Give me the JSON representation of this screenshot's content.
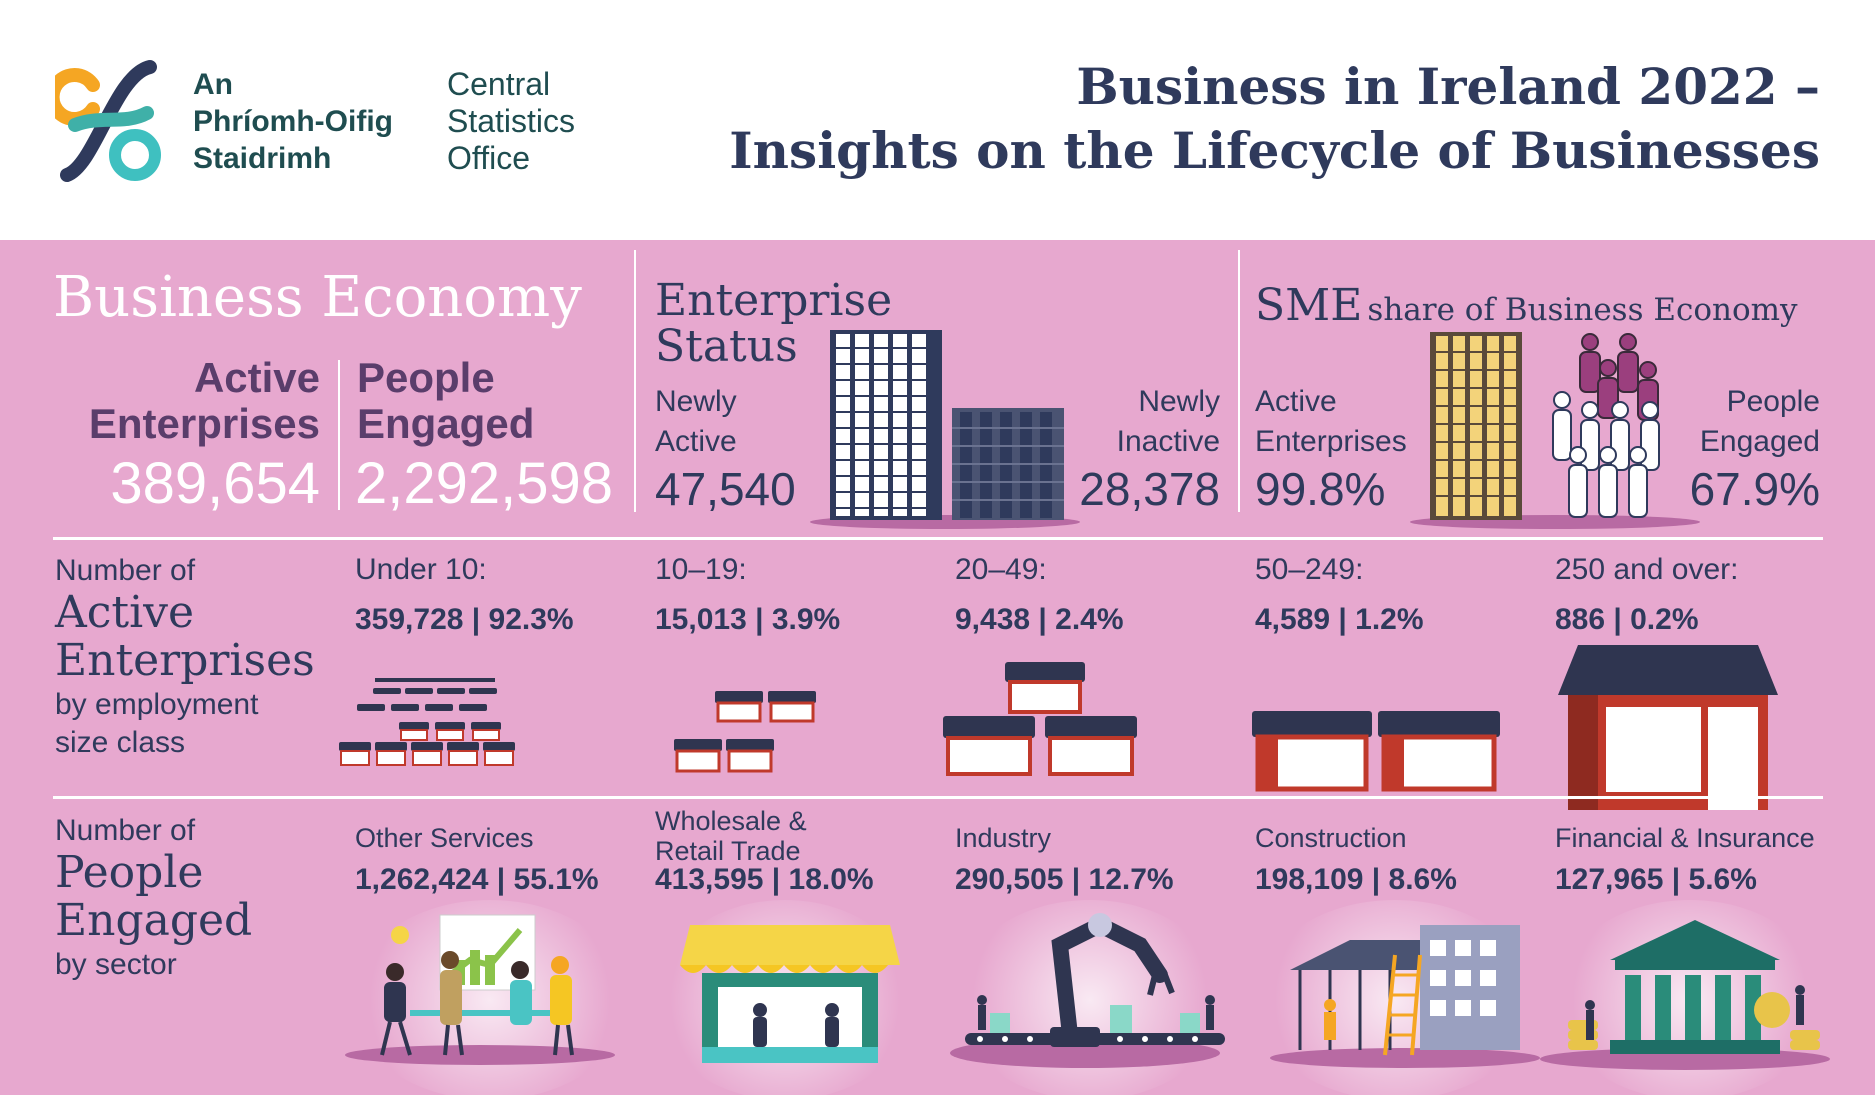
{
  "logo": {
    "irish": [
      "An",
      "Phríomh-Oifig",
      "Staidrimh"
    ],
    "english": [
      "Central",
      "Statistics",
      "Office"
    ]
  },
  "title": [
    "Business in Ireland 2022 –",
    "Insights on the Lifecycle of Businesses"
  ],
  "business_economy": {
    "heading": "Business Economy",
    "active_label": [
      "Active",
      "Enterprises"
    ],
    "active_value": "389,654",
    "people_label": [
      "People",
      "Engaged"
    ],
    "people_value": "2,292,598"
  },
  "enterprise_status": {
    "heading": [
      "Enterprise",
      "Status"
    ],
    "newly_active_label": [
      "Newly",
      "Active"
    ],
    "newly_active_value": "47,540",
    "newly_inactive_label": [
      "Newly",
      "Inactive"
    ],
    "newly_inactive_value": "28,378"
  },
  "sme_share": {
    "heading_main": "SME",
    "heading_rest": "share of Business Economy",
    "active_label": [
      "Active",
      "Enterprises"
    ],
    "active_value": "99.8%",
    "people_label": [
      "People",
      "Engaged"
    ],
    "people_value": "67.9%"
  },
  "size_class": {
    "title_top": "Number of",
    "title_big": [
      "Active",
      "Enterprises"
    ],
    "title_bottom": [
      "by employment",
      "size class"
    ],
    "items": [
      {
        "label": "Under 10:",
        "value": "359,728 | 92.3%"
      },
      {
        "label": "10–19:",
        "value": "15,013 | 3.9%"
      },
      {
        "label": "20–49:",
        "value": "9,438 | 2.4%"
      },
      {
        "label": "50–249:",
        "value": "4,589 | 1.2%"
      },
      {
        "label": "250 and over:",
        "value": "886 | 0.2%"
      }
    ]
  },
  "sector": {
    "title_top": "Number of",
    "title_big": [
      "People",
      "Engaged"
    ],
    "title_bottom": "by sector",
    "items": [
      {
        "label": [
          "Other Services"
        ],
        "value": "1,262,424 | 55.1%"
      },
      {
        "label": [
          "Wholesale &",
          "Retail Trade"
        ],
        "value": "413,595 | 18.0%"
      },
      {
        "label": [
          "Industry"
        ],
        "value": "290,505 | 12.7%"
      },
      {
        "label": [
          "Construction"
        ],
        "value": "198,109 | 8.6%"
      },
      {
        "label": [
          "Financial & Insurance"
        ],
        "value": "127,965 | 5.6%"
      }
    ]
  },
  "colors": {
    "panel": "#e7a8cf",
    "navy": "#2f3a5c",
    "purple": "#5a3d6b",
    "teal": "#3fc0c0",
    "orange": "#f5a623",
    "shop_red": "#c0392b",
    "roof": "#2f3550",
    "yellow_building": "#f3d37a"
  },
  "icons": [
    "cso-logo-icon",
    "tower-building-icon",
    "short-building-icon",
    "yellow-building-icon",
    "people-group-icon",
    "shop-icon",
    "office-meeting-icon",
    "market-stall-icon",
    "robot-arm-icon",
    "construction-icon",
    "bank-icon"
  ]
}
